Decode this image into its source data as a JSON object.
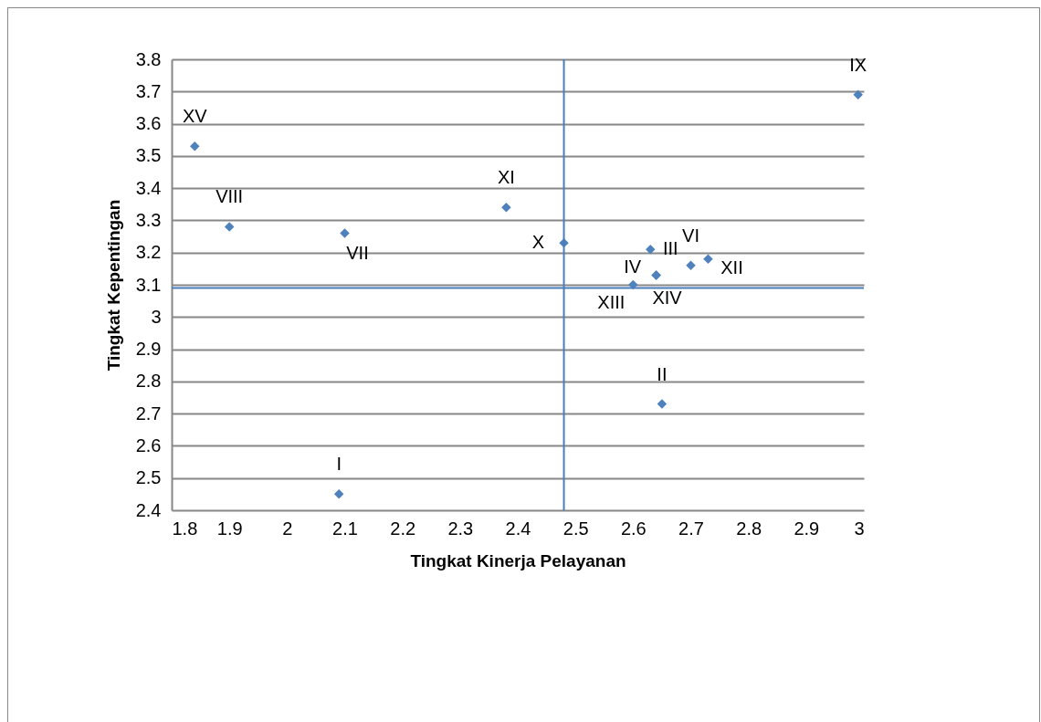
{
  "chart_data": {
    "type": "scatter",
    "xlabel": "Tingkat Kinerja Pelayanan",
    "ylabel": "Tingkat Kepentingan",
    "series": [
      {
        "color": "#4f81bd",
        "x": [
          2.09,
          2.65,
          2.63,
          2.64,
          1.84,
          2.7,
          2.1,
          1.9,
          2.99,
          2.48,
          2.38,
          2.73,
          2.6,
          2.64
        ],
        "values": [
          2.45,
          2.73,
          3.21,
          3.13,
          3.53,
          3.16,
          3.26,
          3.28,
          3.69,
          3.23,
          3.34,
          3.18,
          3.1,
          3.13
        ],
        "value_labels": [
          "I",
          "II",
          "III",
          "IV",
          "XV",
          "VI",
          "VII",
          "VIII",
          "IX",
          "X",
          "XI",
          "XII",
          "XIII",
          "XIV"
        ]
      }
    ],
    "xlim": [
      1.8,
      3
    ],
    "xticks": [
      1.8,
      1.9,
      2,
      2.1,
      2.2,
      2.3,
      2.4,
      2.5,
      2.6,
      2.7,
      2.8,
      2.9,
      3
    ],
    "ylim": [
      2.4,
      3.8
    ],
    "yticks": [
      2.4,
      2.5,
      2.6,
      2.7,
      2.8,
      2.9,
      3,
      3.1,
      3.2,
      3.3,
      3.4,
      3.5,
      3.6,
      3.7,
      3.8
    ],
    "grid": "y",
    "marker": "diamond",
    "ref_lines": [
      {
        "axis": "x",
        "value": 2.48,
        "color": "#4a7ebb"
      },
      {
        "axis": "y",
        "value": 3.09,
        "color": "#4a7ebb"
      }
    ]
  }
}
